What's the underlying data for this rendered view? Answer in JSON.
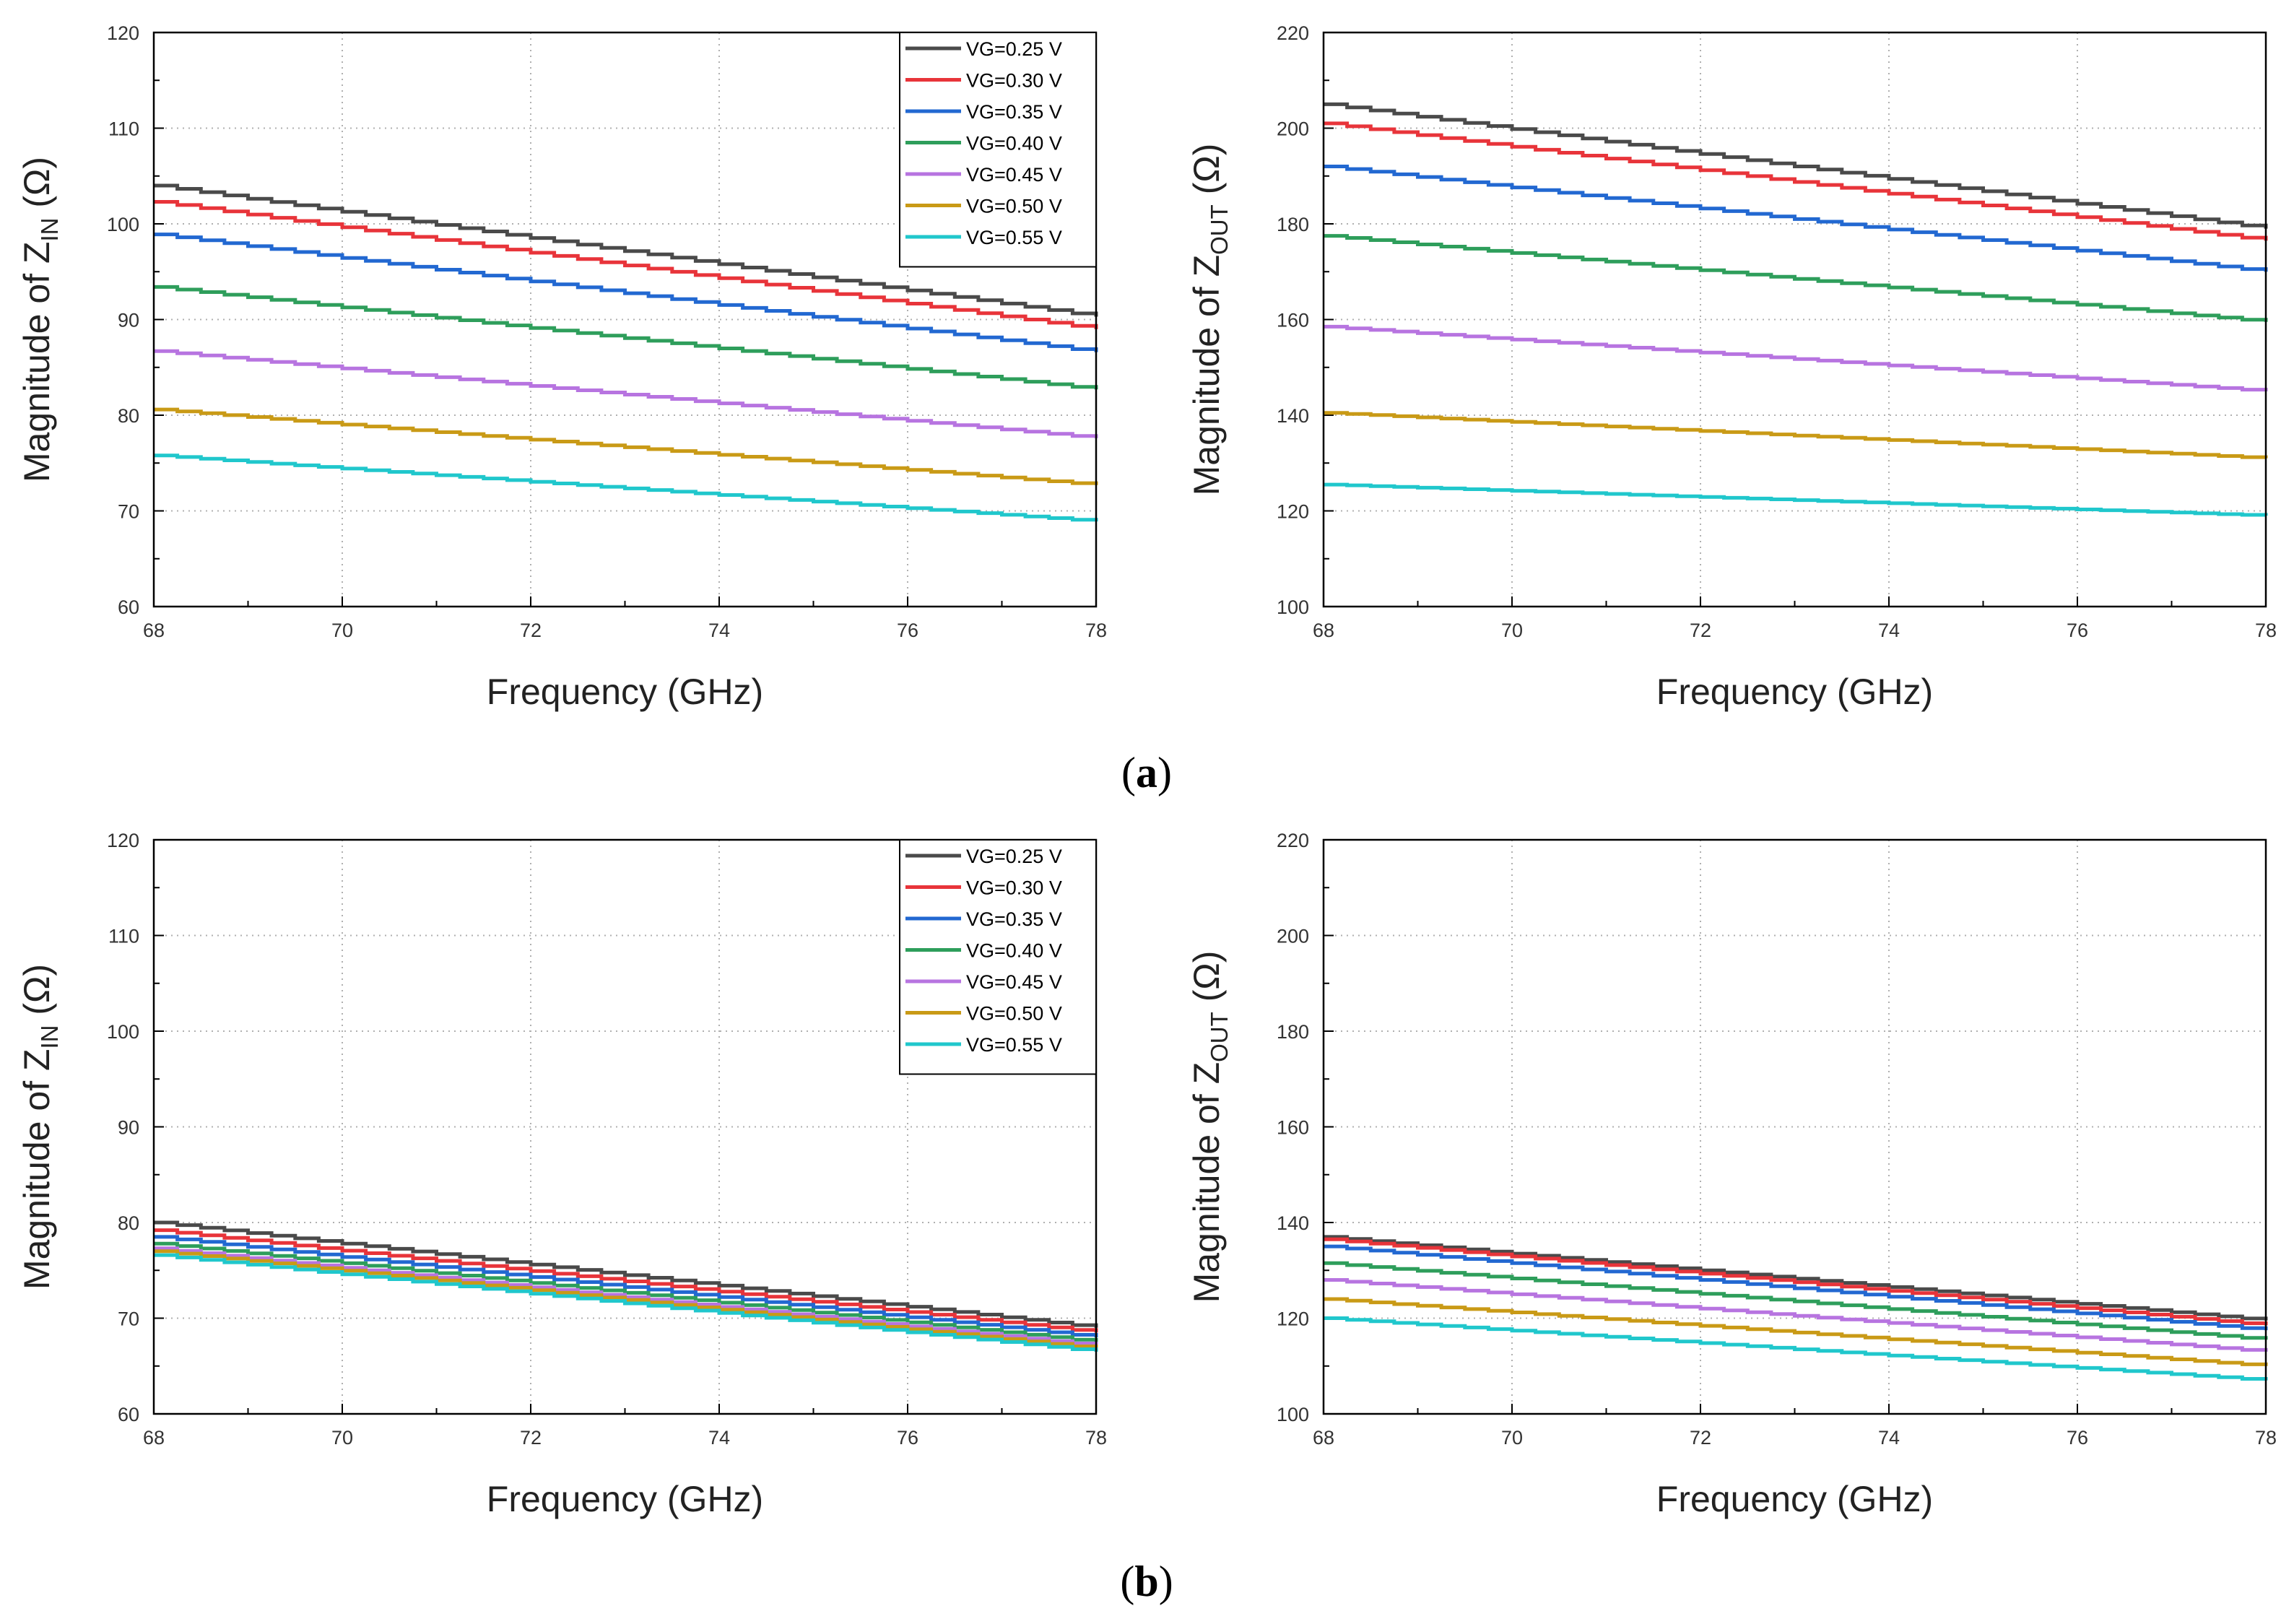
{
  "captions": {
    "a_open": "(",
    "a_letter": "a",
    "a_close": ")",
    "b_open": "(",
    "b_letter": "b",
    "b_close": ")"
  },
  "legend_entries": [
    "VG=0.25 V",
    "VG=0.30 V",
    "VG=0.35 V",
    "VG=0.40 V",
    "VG=0.45 V",
    "VG=0.50 V",
    "VG=0.55 V"
  ],
  "series_colors": [
    "#4a4a4a",
    "#e8343a",
    "#2268d1",
    "#2e9e5b",
    "#b774e0",
    "#c99a16",
    "#20c7cc"
  ],
  "chart_data": [
    {
      "id": "a-zin",
      "type": "line",
      "panel": "a",
      "title": "",
      "xlabel": "Frequency (GHz)",
      "ylabel_prefix": "Magnitude of  Z",
      "ylabel_sub": "IN",
      "ylabel_suffix": " (Ω)",
      "xlim": [
        68,
        78
      ],
      "ylim": [
        60,
        120
      ],
      "xticks": [
        68,
        70,
        72,
        74,
        76,
        78
      ],
      "yticks": [
        60,
        70,
        80,
        90,
        100,
        110,
        120
      ],
      "grid": true,
      "legend": "top-right",
      "x": [
        68,
        78
      ],
      "series": [
        {
          "name": "VG=0.25 V",
          "values": [
            104,
            90.3
          ]
        },
        {
          "name": "VG=0.30 V",
          "values": [
            102.3,
            89
          ]
        },
        {
          "name": "VG=0.35 V",
          "values": [
            98.9,
            86.6
          ]
        },
        {
          "name": "VG=0.40 V",
          "values": [
            93.4,
            82.7
          ]
        },
        {
          "name": "VG=0.45 V",
          "values": [
            86.7,
            77.6
          ]
        },
        {
          "name": "VG=0.50 V",
          "values": [
            80.6,
            72.7
          ]
        },
        {
          "name": "VG=0.55 V",
          "values": [
            75.8,
            68.9
          ]
        }
      ]
    },
    {
      "id": "a-zout",
      "type": "line",
      "panel": "a",
      "title": "",
      "xlabel": "Frequency (GHz)",
      "ylabel_prefix": "Magnitude of  Z",
      "ylabel_sub": "OUT",
      "ylabel_suffix": " (Ω)",
      "xlim": [
        68,
        78
      ],
      "ylim": [
        100,
        220
      ],
      "xticks": [
        68,
        70,
        72,
        74,
        76,
        78
      ],
      "yticks": [
        100,
        120,
        140,
        160,
        180,
        200,
        220
      ],
      "grid": true,
      "legend": "none",
      "x": [
        68,
        78
      ],
      "series": [
        {
          "name": "VG=0.25 V",
          "values": [
            205,
            179
          ]
        },
        {
          "name": "VG=0.30 V",
          "values": [
            201,
            176.5
          ]
        },
        {
          "name": "VG=0.35 V",
          "values": [
            192,
            170
          ]
        },
        {
          "name": "VG=0.40 V",
          "values": [
            177.5,
            159.5
          ]
        },
        {
          "name": "VG=0.45 V",
          "values": [
            158.5,
            145
          ]
        },
        {
          "name": "VG=0.50 V",
          "values": [
            140.5,
            131
          ]
        },
        {
          "name": "VG=0.55 V",
          "values": [
            125.5,
            119
          ]
        }
      ]
    },
    {
      "id": "b-zin",
      "type": "line",
      "panel": "b",
      "title": "",
      "xlabel": "Frequency (GHz)",
      "ylabel_prefix": "Magnitude of  Z",
      "ylabel_sub": "IN",
      "ylabel_suffix": " (Ω)",
      "xlim": [
        68,
        78
      ],
      "ylim": [
        60,
        120
      ],
      "xticks": [
        68,
        70,
        72,
        74,
        76,
        78
      ],
      "yticks": [
        60,
        70,
        80,
        90,
        100,
        110,
        120
      ],
      "grid": true,
      "legend": "top-right",
      "x": [
        68,
        78
      ],
      "series": [
        {
          "name": "VG=0.25 V",
          "values": [
            80,
            69
          ]
        },
        {
          "name": "VG=0.30 V",
          "values": [
            79.2,
            68.5
          ]
        },
        {
          "name": "VG=0.35 V",
          "values": [
            78.5,
            68
          ]
        },
        {
          "name": "VG=0.40 V",
          "values": [
            77.8,
            67.5
          ]
        },
        {
          "name": "VG=0.45 V",
          "values": [
            77.3,
            67.1
          ]
        },
        {
          "name": "VG=0.50 V",
          "values": [
            77,
            66.8
          ]
        },
        {
          "name": "VG=0.55 V",
          "values": [
            76.6,
            66.5
          ]
        }
      ]
    },
    {
      "id": "b-zout",
      "type": "line",
      "panel": "b",
      "title": "",
      "xlabel": "Frequency (GHz)",
      "ylabel_prefix": "Magnitude of  Z",
      "ylabel_sub": "OUT",
      "ylabel_suffix": " (Ω)",
      "xlim": [
        68,
        78
      ],
      "ylim": [
        100,
        220
      ],
      "xticks": [
        68,
        70,
        72,
        74,
        76,
        78
      ],
      "yticks": [
        100,
        120,
        140,
        160,
        180,
        200,
        220
      ],
      "grid": true,
      "legend": "none",
      "x": [
        68,
        78
      ],
      "series": [
        {
          "name": "VG=0.25 V",
          "values": [
            137,
            119.5
          ]
        },
        {
          "name": "VG=0.30 V",
          "values": [
            136.5,
            118.5
          ]
        },
        {
          "name": "VG=0.35 V",
          "values": [
            135,
            117.5
          ]
        },
        {
          "name": "VG=0.40 V",
          "values": [
            131.5,
            115.5
          ]
        },
        {
          "name": "VG=0.45 V",
          "values": [
            128,
            113
          ]
        },
        {
          "name": "VG=0.50 V",
          "values": [
            124,
            110
          ]
        },
        {
          "name": "VG=0.55 V",
          "values": [
            120,
            107
          ]
        }
      ]
    }
  ]
}
